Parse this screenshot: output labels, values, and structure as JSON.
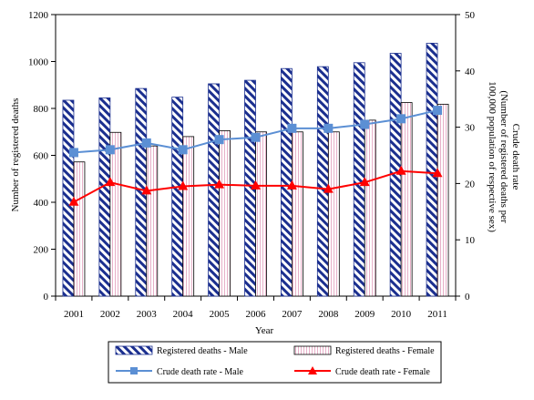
{
  "chart_data": {
    "type": "bar",
    "categories": [
      "2001",
      "2002",
      "2003",
      "2004",
      "2005",
      "2006",
      "2007",
      "2008",
      "2009",
      "2010",
      "2011"
    ],
    "xlabel": "Year",
    "ylabel": "Number of registered deaths",
    "y2label_line1": "Crude death rate",
    "y2label_line2": "(Number of registered deaths per",
    "y2label_line3": "100,000 population of respective sex)",
    "ylim": [
      0,
      1200
    ],
    "y2lim": [
      0,
      50
    ],
    "yticks": [
      0,
      200,
      400,
      600,
      800,
      1000,
      1200
    ],
    "y2ticks": [
      0,
      10,
      20,
      30,
      40,
      50
    ],
    "grid": false,
    "legend_position": "bottom",
    "series": [
      {
        "name": "Registered deaths - Male",
        "kind": "bar",
        "axis": "left",
        "pattern": "diagonal-hatch",
        "color": "#1b2f8f",
        "values": [
          835,
          845,
          885,
          848,
          905,
          920,
          970,
          978,
          995,
          1035,
          1078
        ]
      },
      {
        "name": "Registered deaths - Female",
        "kind": "bar",
        "axis": "left",
        "pattern": "vertical-lines",
        "color": "#e7b0c8",
        "values": [
          572,
          698,
          640,
          680,
          705,
          700,
          700,
          700,
          750,
          825,
          818
        ]
      },
      {
        "name": "Crude death rate - Male",
        "kind": "line",
        "axis": "right",
        "marker": "square",
        "color": "#5b8fd4",
        "values": [
          25.5,
          26.0,
          27.2,
          26.0,
          27.8,
          28.2,
          29.8,
          29.8,
          30.5,
          31.5,
          33.0
        ]
      },
      {
        "name": "Crude death rate - Female",
        "kind": "line",
        "axis": "right",
        "marker": "triangle",
        "color": "#ff0000",
        "values": [
          16.7,
          20.2,
          18.7,
          19.5,
          19.8,
          19.6,
          19.6,
          19.0,
          20.2,
          22.2,
          21.8
        ]
      }
    ]
  }
}
